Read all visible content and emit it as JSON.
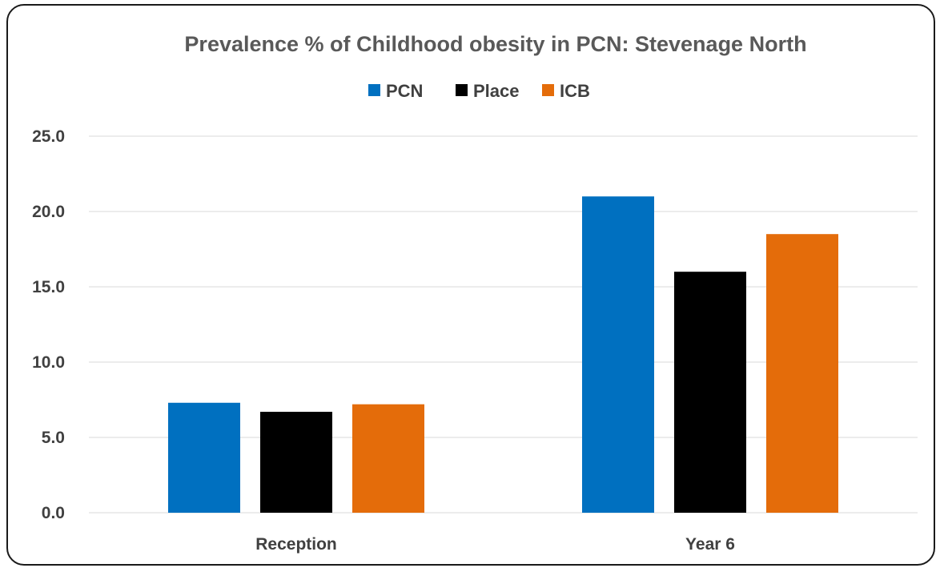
{
  "chart_data": {
    "type": "bar",
    "title": "Prevalence % of Childhood obesity in PCN: Stevenage North",
    "categories": [
      "Reception",
      "Year 6"
    ],
    "series": [
      {
        "name": "PCN",
        "color": "#0070C0",
        "values": [
          7.3,
          21.0
        ]
      },
      {
        "name": "Place",
        "color": "#000000",
        "values": [
          6.7,
          16.0
        ]
      },
      {
        "name": "ICB",
        "color": "#E46C0A",
        "values": [
          7.2,
          18.5
        ]
      }
    ],
    "ylim": [
      0,
      25
    ],
    "yticks": [
      "0.0",
      "5.0",
      "10.0",
      "15.0",
      "20.0",
      "25.0"
    ],
    "grid": true,
    "legend": "top"
  }
}
